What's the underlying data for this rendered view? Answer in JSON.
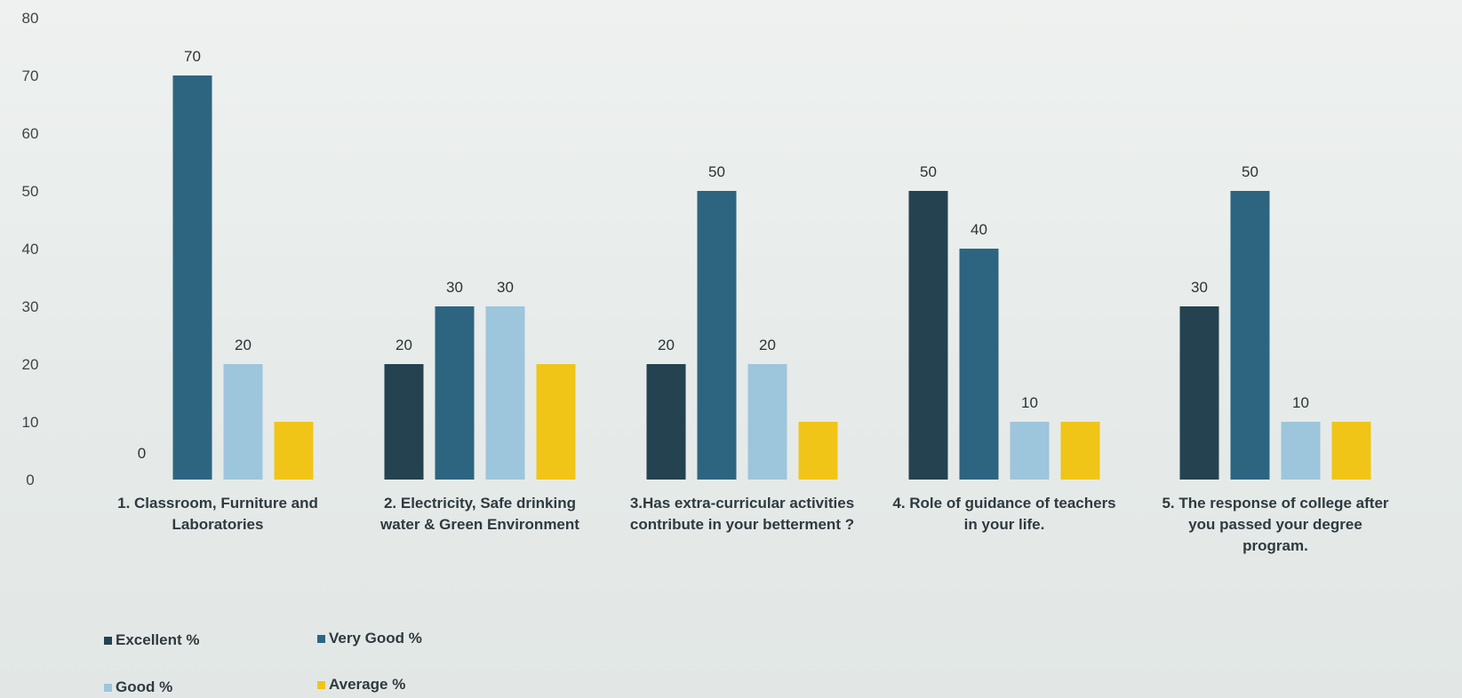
{
  "chart_data": {
    "type": "bar",
    "categories": [
      [
        "1. Classroom, Furniture and",
        "Laboratories"
      ],
      [
        "2. Electricity, Safe drinking",
        "water & Green Environment"
      ],
      [
        "3.Has extra-curricular activities",
        "contribute in your betterment ?"
      ],
      [
        "4. Role of guidance of teachers",
        "in your life."
      ],
      [
        "5. The response of college after",
        "you passed your degree",
        "program."
      ]
    ],
    "series": [
      {
        "name": "Excellent %",
        "color": "#24424f",
        "values": [
          0,
          20,
          20,
          50,
          30
        ]
      },
      {
        "name": "Very Good %",
        "color": "#2d6581",
        "values": [
          70,
          30,
          50,
          40,
          50
        ]
      },
      {
        "name": "Good %",
        "color": "#9dc5dc",
        "values": [
          20,
          30,
          20,
          10,
          10
        ]
      },
      {
        "name": "Average %",
        "color": "#f0c518",
        "values": [
          10,
          20,
          10,
          10,
          10
        ]
      }
    ],
    "bar_data_labels": [
      [
        "0",
        "70",
        "20",
        null
      ],
      [
        "20",
        "30",
        "30",
        null
      ],
      [
        "20",
        "50",
        "20",
        null
      ],
      [
        "50",
        "40",
        "10",
        null
      ],
      [
        "30",
        "50",
        "10",
        null
      ]
    ],
    "yticks": [
      0,
      10,
      20,
      30,
      40,
      50,
      60,
      70,
      80
    ],
    "ytick_labels": [
      "0",
      "10",
      "20",
      "30",
      "40",
      "50",
      "60",
      "70",
      "80"
    ],
    "ylim": [
      0,
      80
    ],
    "grid": false,
    "legend_position": "bottom-left"
  },
  "legend": [
    {
      "label": "Excellent %",
      "color": "#24424f"
    },
    {
      "label": "Very Good %",
      "color": "#2d6581"
    },
    {
      "label": "Good %",
      "color": "#9dc5dc"
    },
    {
      "label": "Average %",
      "color": "#f0c518"
    }
  ]
}
